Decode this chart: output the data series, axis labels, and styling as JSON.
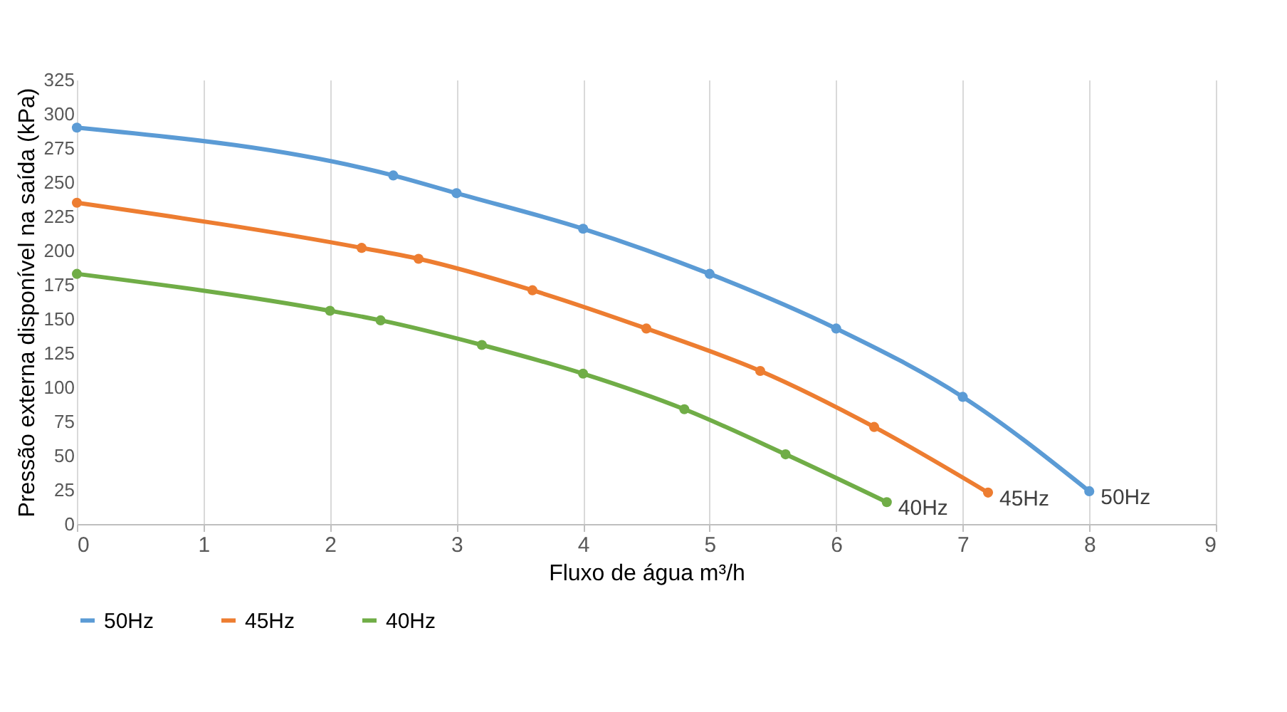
{
  "chart_data": {
    "type": "line",
    "xlabel": "Fluxo de água m³/h",
    "ylabel": "Pressão externa disponível na saída (kPa)",
    "xlim": [
      0,
      9
    ],
    "xticks": [
      0,
      1,
      2,
      3,
      4,
      5,
      6,
      7,
      8,
      9
    ],
    "ylim": [
      0,
      325
    ],
    "yticks": [
      0,
      25,
      50,
      75,
      100,
      125,
      150,
      175,
      200,
      225,
      250,
      275,
      300,
      325
    ],
    "grid": "x",
    "legend": "bottom",
    "marker": "circle",
    "line_style": "solid",
    "series": [
      {
        "name": "50Hz",
        "color": "#5b9bd5",
        "x": [
          0,
          2.5,
          3,
          4,
          5,
          6,
          7,
          8
        ],
        "values": [
          290,
          255,
          242,
          216,
          183,
          143,
          93,
          24
        ]
      },
      {
        "name": "45Hz",
        "color": "#ed7d31",
        "x": [
          0,
          2.25,
          2.7,
          3.6,
          4.5,
          5.4,
          6.3,
          7.2
        ],
        "values": [
          235,
          202,
          194,
          171,
          143,
          112,
          71,
          23
        ]
      },
      {
        "name": "40Hz",
        "color": "#70ad47",
        "x": [
          0,
          2,
          2.4,
          3.2,
          4,
          4.8,
          5.6,
          6.4
        ],
        "values": [
          183,
          156,
          149,
          131,
          110,
          84,
          51,
          16
        ]
      }
    ]
  }
}
